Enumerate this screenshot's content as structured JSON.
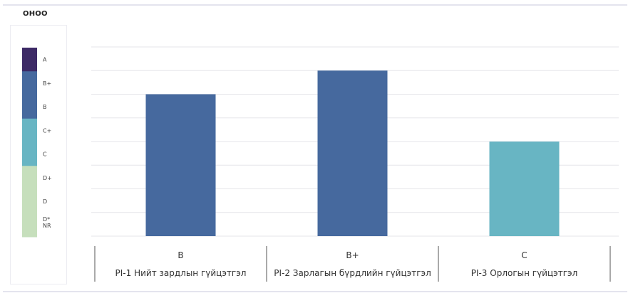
{
  "chart_data": {
    "type": "bar",
    "title": "ОНОО",
    "scale": [
      "D-",
      "D",
      "D+",
      "C",
      "C+",
      "B",
      "B+",
      "A"
    ],
    "categories": [
      {
        "grade": "B",
        "label": "PI-1 Нийт зардлын гүйцэтгэл"
      },
      {
        "grade": "B+",
        "label": "PI-2 Зарлагын бүрдлийн гүйцэтгэл"
      },
      {
        "grade": "C",
        "label": "PI-3 Орлогын гүйцэтгэл"
      }
    ],
    "values": [
      6,
      7,
      4
    ],
    "ylim": [
      0,
      8
    ],
    "grid": true,
    "colors": {
      "A": "#3d2a66",
      "B": "#46699e",
      "C": "#68b5c3",
      "D": "#c6dfbc"
    }
  },
  "legend": {
    "levels": [
      {
        "grade": "A",
        "color": "#3d2a66",
        "label": "A"
      },
      {
        "grade": "B+",
        "color": "#46699e",
        "label": "B+"
      },
      {
        "grade": "B",
        "color": "#46699e",
        "label": "B"
      },
      {
        "grade": "C+",
        "color": "#68b5c3",
        "label": "C+"
      },
      {
        "grade": "C",
        "color": "#68b5c3",
        "label": "C"
      },
      {
        "grade": "D+",
        "color": "#c6dfbc",
        "label": "D+"
      },
      {
        "grade": "D",
        "color": "#c6dfbc",
        "label": "D"
      },
      {
        "grade": "D-",
        "color": "#c6dfbc",
        "label": "D*"
      }
    ],
    "footnote": "NR"
  }
}
